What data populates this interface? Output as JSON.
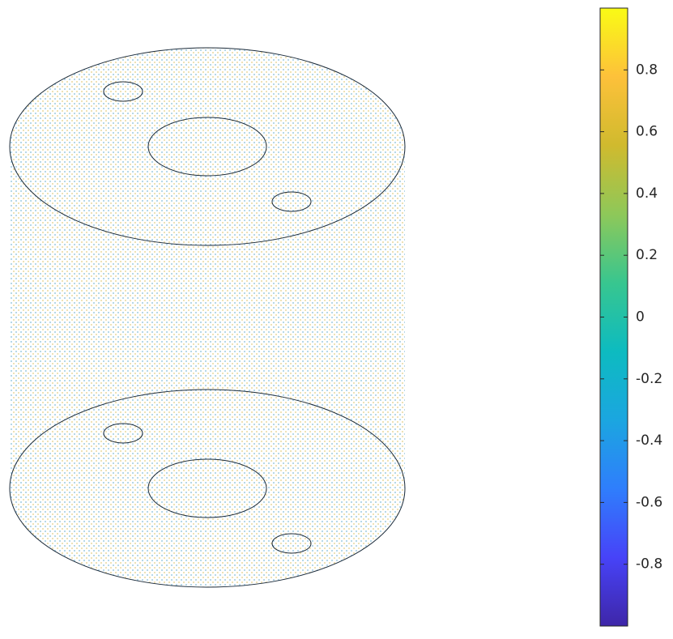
{
  "chart_data": {
    "type": "colorbar",
    "clim": [
      -1,
      1
    ],
    "colormap": [
      "#3e26a8",
      "#4743f8",
      "#2f7efc",
      "#1ba6e0",
      "#0dbbc0",
      "#38c68f",
      "#8ec859",
      "#d0ba2e",
      "#fdc13a",
      "#f9fb15"
    ],
    "yticks": [
      -0.8,
      -0.6,
      -0.4,
      -0.2,
      0,
      0.2,
      0.4,
      0.6,
      0.8
    ]
  }
}
